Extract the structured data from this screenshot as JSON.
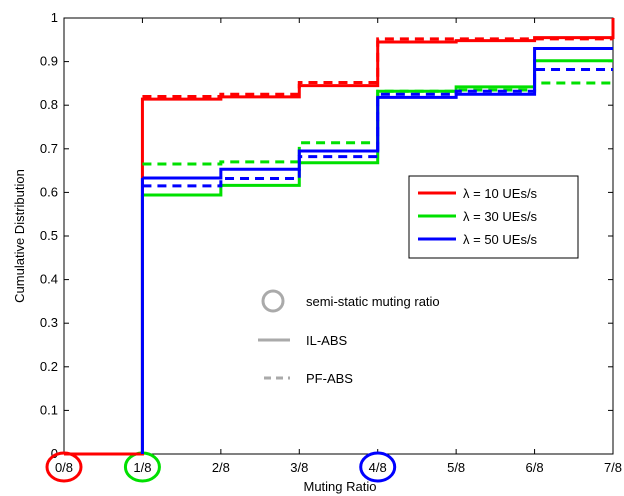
{
  "chart_data": {
    "type": "line",
    "step": true,
    "xlabel": "Muting Ratio",
    "ylabel": "Cumulative Distribution",
    "x_ticks": [
      "0/8",
      "1/8",
      "2/8",
      "3/8",
      "4/8",
      "5/8",
      "6/8",
      "7/8"
    ],
    "y_ticks": [
      "0",
      "0.1",
      "0.2",
      "0.3",
      "0.4",
      "0.5",
      "0.6",
      "0.7",
      "0.8",
      "0.9",
      "1"
    ],
    "xlim": [
      0,
      7
    ],
    "ylim": [
      0,
      1
    ],
    "grid": false,
    "legend_position": "right",
    "legend": [
      {
        "label": "λ = 10 UEs/s",
        "color": "#ff0000"
      },
      {
        "label": "λ = 30 UEs/s",
        "color": "#00e000"
      },
      {
        "label": "λ = 50 UEs/s",
        "color": "#0000ff"
      }
    ],
    "series": [
      {
        "name": "λ = 10 UEs/s",
        "scheme": "IL-ABS",
        "style": "solid",
        "color": "#ff0000",
        "x": [
          0,
          1,
          1,
          2,
          3,
          4,
          5,
          6,
          7
        ],
        "y": [
          0,
          0,
          0.814,
          0.819,
          0.845,
          0.945,
          0.948,
          0.955,
          1.0
        ]
      },
      {
        "name": "λ = 10 UEs/s",
        "scheme": "PF-ABS",
        "style": "dashed",
        "color": "#ff0000",
        "x": [
          1,
          2,
          3,
          4,
          5,
          6,
          7
        ],
        "y": [
          0.82,
          0.825,
          0.852,
          0.952,
          0.952,
          0.952,
          0.952
        ]
      },
      {
        "name": "λ = 30 UEs/s",
        "scheme": "IL-ABS",
        "style": "solid",
        "color": "#00e000",
        "x": [
          1,
          2,
          3,
          4,
          5,
          6,
          7
        ],
        "y": [
          0.594,
          0.616,
          0.668,
          0.832,
          0.842,
          0.902,
          0.902
        ]
      },
      {
        "name": "λ = 30 UEs/s",
        "scheme": "PF-ABS",
        "style": "dashed",
        "color": "#00e000",
        "x": [
          1,
          2,
          3,
          4,
          5,
          6,
          7
        ],
        "y": [
          0.665,
          0.67,
          0.714,
          0.832,
          0.835,
          0.851,
          0.851
        ]
      },
      {
        "name": "λ = 50 UEs/s",
        "scheme": "IL-ABS",
        "style": "solid",
        "color": "#0000ff",
        "x": [
          1,
          2,
          3,
          4,
          5,
          6,
          7
        ],
        "y": [
          0.633,
          0.653,
          0.695,
          0.818,
          0.825,
          0.93,
          0.93
        ]
      },
      {
        "name": "λ = 50 UEs/s",
        "scheme": "PF-ABS",
        "style": "dashed",
        "color": "#0000ff",
        "x": [
          1,
          2,
          3,
          4,
          5,
          6,
          7
        ],
        "y": [
          0.615,
          0.632,
          0.682,
          0.825,
          0.832,
          0.882,
          0.882
        ]
      }
    ],
    "semi_static_circles": [
      {
        "tick": "0/8",
        "color": "#ff0000"
      },
      {
        "tick": "1/8",
        "color": "#00e000"
      },
      {
        "tick": "4/8",
        "color": "#0000ff"
      }
    ],
    "annotations": {
      "circle_label": "semi-static muting ratio",
      "solid_label": "IL-ABS",
      "dashed_label": "PF-ABS",
      "annotation_color": "#aaaaaa"
    }
  }
}
